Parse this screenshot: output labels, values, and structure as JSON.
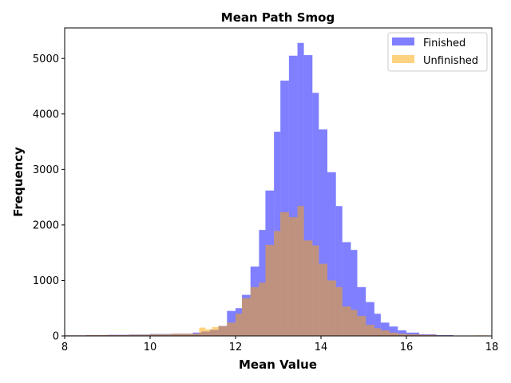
{
  "chart_data": {
    "type": "bar",
    "title": "Mean Path Smog",
    "xlabel": "Mean Value",
    "ylabel": "Frequency",
    "xlim": [
      8,
      18
    ],
    "ylim": [
      0,
      5550
    ],
    "xticks": [
      8,
      10,
      12,
      14,
      16,
      18
    ],
    "yticks": [
      0,
      1000,
      2000,
      3000,
      4000,
      5000
    ],
    "legend_position": "top-right",
    "grid": false,
    "series": [
      {
        "name": "Finished",
        "color": "#0000ff",
        "opacity": 0.5,
        "bins": [
          {
            "x0": 8.0,
            "x1": 8.5,
            "value": 10
          },
          {
            "x0": 8.5,
            "x1": 9.0,
            "value": 15
          },
          {
            "x0": 9.0,
            "x1": 9.5,
            "value": 20
          },
          {
            "x0": 9.5,
            "x1": 10.0,
            "value": 25
          },
          {
            "x0": 10.0,
            "x1": 10.5,
            "value": 35
          },
          {
            "x0": 10.5,
            "x1": 11.0,
            "value": 40
          },
          {
            "x0": 11.0,
            "x1": 11.2,
            "value": 60
          },
          {
            "x0": 11.2,
            "x1": 11.4,
            "value": 80
          },
          {
            "x0": 11.4,
            "x1": 11.6,
            "value": 110
          },
          {
            "x0": 11.6,
            "x1": 11.8,
            "value": 180
          },
          {
            "x0": 11.8,
            "x1": 12.0,
            "value": 450
          },
          {
            "x0": 12.0,
            "x1": 12.15,
            "value": 500
          },
          {
            "x0": 12.15,
            "x1": 12.35,
            "value": 740
          },
          {
            "x0": 12.35,
            "x1": 12.55,
            "value": 1250
          },
          {
            "x0": 12.55,
            "x1": 12.7,
            "value": 1910
          },
          {
            "x0": 12.7,
            "x1": 12.9,
            "value": 2620
          },
          {
            "x0": 12.9,
            "x1": 13.05,
            "value": 3680
          },
          {
            "x0": 13.05,
            "x1": 13.25,
            "value": 4600
          },
          {
            "x0": 13.25,
            "x1": 13.45,
            "value": 5050
          },
          {
            "x0": 13.45,
            "x1": 13.6,
            "value": 5280
          },
          {
            "x0": 13.6,
            "x1": 13.8,
            "value": 5060
          },
          {
            "x0": 13.8,
            "x1": 13.95,
            "value": 4380
          },
          {
            "x0": 13.95,
            "x1": 14.15,
            "value": 3720
          },
          {
            "x0": 14.15,
            "x1": 14.35,
            "value": 2950
          },
          {
            "x0": 14.35,
            "x1": 14.5,
            "value": 2340
          },
          {
            "x0": 14.5,
            "x1": 14.7,
            "value": 1690
          },
          {
            "x0": 14.7,
            "x1": 14.85,
            "value": 1550
          },
          {
            "x0": 14.85,
            "x1": 15.05,
            "value": 880
          },
          {
            "x0": 15.05,
            "x1": 15.25,
            "value": 610
          },
          {
            "x0": 15.25,
            "x1": 15.4,
            "value": 400
          },
          {
            "x0": 15.4,
            "x1": 15.6,
            "value": 240
          },
          {
            "x0": 15.6,
            "x1": 15.8,
            "value": 170
          },
          {
            "x0": 15.8,
            "x1": 16.0,
            "value": 100
          },
          {
            "x0": 16.0,
            "x1": 16.3,
            "value": 60
          },
          {
            "x0": 16.3,
            "x1": 16.7,
            "value": 30
          },
          {
            "x0": 16.7,
            "x1": 17.1,
            "value": 15
          },
          {
            "x0": 17.1,
            "x1": 17.6,
            "value": 5
          }
        ]
      },
      {
        "name": "Unfinished",
        "color": "#ffa500",
        "opacity": 0.5,
        "bins": [
          {
            "x0": 8.0,
            "x1": 8.5,
            "value": 10
          },
          {
            "x0": 8.5,
            "x1": 9.0,
            "value": 15
          },
          {
            "x0": 9.0,
            "x1": 9.5,
            "value": 15
          },
          {
            "x0": 9.5,
            "x1": 10.0,
            "value": 20
          },
          {
            "x0": 10.0,
            "x1": 10.5,
            "value": 30
          },
          {
            "x0": 10.5,
            "x1": 11.0,
            "value": 40
          },
          {
            "x0": 11.0,
            "x1": 11.15,
            "value": 40
          },
          {
            "x0": 11.15,
            "x1": 11.3,
            "value": 150
          },
          {
            "x0": 11.3,
            "x1": 11.45,
            "value": 120
          },
          {
            "x0": 11.45,
            "x1": 11.6,
            "value": 160
          },
          {
            "x0": 11.6,
            "x1": 11.8,
            "value": 180
          },
          {
            "x0": 11.8,
            "x1": 12.0,
            "value": 240
          },
          {
            "x0": 12.0,
            "x1": 12.15,
            "value": 400
          },
          {
            "x0": 12.15,
            "x1": 12.35,
            "value": 680
          },
          {
            "x0": 12.35,
            "x1": 12.55,
            "value": 880
          },
          {
            "x0": 12.55,
            "x1": 12.7,
            "value": 960
          },
          {
            "x0": 12.7,
            "x1": 12.9,
            "value": 1640
          },
          {
            "x0": 12.9,
            "x1": 13.05,
            "value": 1890
          },
          {
            "x0": 13.05,
            "x1": 13.25,
            "value": 2230
          },
          {
            "x0": 13.25,
            "x1": 13.45,
            "value": 2140
          },
          {
            "x0": 13.45,
            "x1": 13.6,
            "value": 2340
          },
          {
            "x0": 13.6,
            "x1": 13.8,
            "value": 1720
          },
          {
            "x0": 13.8,
            "x1": 13.95,
            "value": 1630
          },
          {
            "x0": 13.95,
            "x1": 14.15,
            "value": 1300
          },
          {
            "x0": 14.15,
            "x1": 14.35,
            "value": 1000
          },
          {
            "x0": 14.35,
            "x1": 14.5,
            "value": 880
          },
          {
            "x0": 14.5,
            "x1": 14.7,
            "value": 530
          },
          {
            "x0": 14.7,
            "x1": 14.85,
            "value": 470
          },
          {
            "x0": 14.85,
            "x1": 15.05,
            "value": 360
          },
          {
            "x0": 15.05,
            "x1": 15.25,
            "value": 200
          },
          {
            "x0": 15.25,
            "x1": 15.4,
            "value": 140
          },
          {
            "x0": 15.4,
            "x1": 15.6,
            "value": 100
          },
          {
            "x0": 15.6,
            "x1": 15.8,
            "value": 60
          },
          {
            "x0": 15.8,
            "x1": 16.0,
            "value": 40
          },
          {
            "x0": 16.0,
            "x1": 16.3,
            "value": 30
          },
          {
            "x0": 16.3,
            "x1": 16.7,
            "value": 20
          },
          {
            "x0": 16.7,
            "x1": 17.1,
            "value": 10
          },
          {
            "x0": 17.1,
            "x1": 17.6,
            "value": 5
          },
          {
            "x0": 17.6,
            "x1": 17.9,
            "value": 10
          }
        ]
      }
    ]
  }
}
